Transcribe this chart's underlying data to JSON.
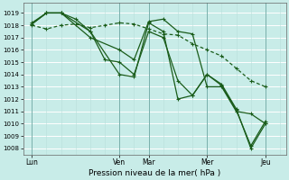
{
  "xlabel": "Pression niveau de la mer( hPa )",
  "ylim": [
    1007.5,
    1019.8
  ],
  "yticks": [
    1008,
    1009,
    1010,
    1011,
    1012,
    1013,
    1014,
    1015,
    1016,
    1017,
    1018,
    1019
  ],
  "bg_color": "#c8ece8",
  "grid_color": "#b0d8d4",
  "line_color": "#1a5c1a",
  "xtick_labels": [
    "Lun",
    "Ven",
    "Mar",
    "Mer",
    "Jeu"
  ],
  "xtick_positions": [
    0,
    3,
    4,
    6,
    8
  ],
  "xlim": [
    -0.3,
    8.7
  ],
  "vline_x": [
    0,
    3,
    4,
    6,
    8
  ],
  "series": [
    {
      "x": [
        0,
        0.5,
        1.0,
        1.5,
        2.0,
        2.5,
        3.0,
        3.5,
        4.0,
        4.5,
        5.0,
        5.5,
        6.0,
        6.5,
        7.0,
        7.5,
        8.0
      ],
      "y": [
        1018.0,
        1017.7,
        1018.0,
        1018.1,
        1017.8,
        1018.0,
        1018.2,
        1018.1,
        1017.7,
        1017.3,
        1017.2,
        1016.5,
        1016.0,
        1015.5,
        1014.5,
        1013.5,
        1013.0
      ],
      "lw": 0.9,
      "ms": 2.5,
      "dashes": [
        3,
        2
      ]
    },
    {
      "x": [
        0,
        0.5,
        1.0,
        2.0,
        3.0,
        3.5,
        4.0,
        4.5,
        5.0,
        5.5,
        6.0,
        6.5,
        7.0,
        7.5,
        8.0
      ],
      "y": [
        1018.1,
        1019.0,
        1019.0,
        1017.0,
        1016.0,
        1015.2,
        1018.3,
        1018.5,
        1017.5,
        1017.3,
        1013.0,
        1013.0,
        1011.0,
        1010.8,
        1010.0
      ],
      "lw": 0.9,
      "ms": 2.5,
      "dashes": []
    },
    {
      "x": [
        0,
        0.5,
        1.0,
        2.0,
        3.0,
        3.5,
        4.0,
        4.5,
        5.0,
        5.5,
        6.0,
        6.5,
        7.0,
        7.5,
        8.0
      ],
      "y": [
        1018.1,
        1019.0,
        1019.0,
        1017.5,
        1014.0,
        1013.8,
        1018.2,
        1017.5,
        1012.0,
        1012.3,
        1014.0,
        1013.1,
        1011.1,
        1008.2,
        1010.2
      ],
      "lw": 0.9,
      "ms": 2.5,
      "dashes": []
    },
    {
      "x": [
        0,
        0.5,
        1.0,
        1.5,
        2.0,
        2.5,
        3.0,
        3.5,
        4.0,
        4.5,
        5.0,
        5.5,
        6.0,
        6.5,
        7.0,
        7.5,
        8.0
      ],
      "y": [
        1018.2,
        1019.0,
        1019.0,
        1018.5,
        1017.5,
        1015.2,
        1015.0,
        1014.0,
        1017.5,
        1017.0,
        1013.5,
        1012.3,
        1014.0,
        1013.2,
        1011.2,
        1008.0,
        1010.0
      ],
      "lw": 0.9,
      "ms": 2.5,
      "dashes": []
    }
  ]
}
